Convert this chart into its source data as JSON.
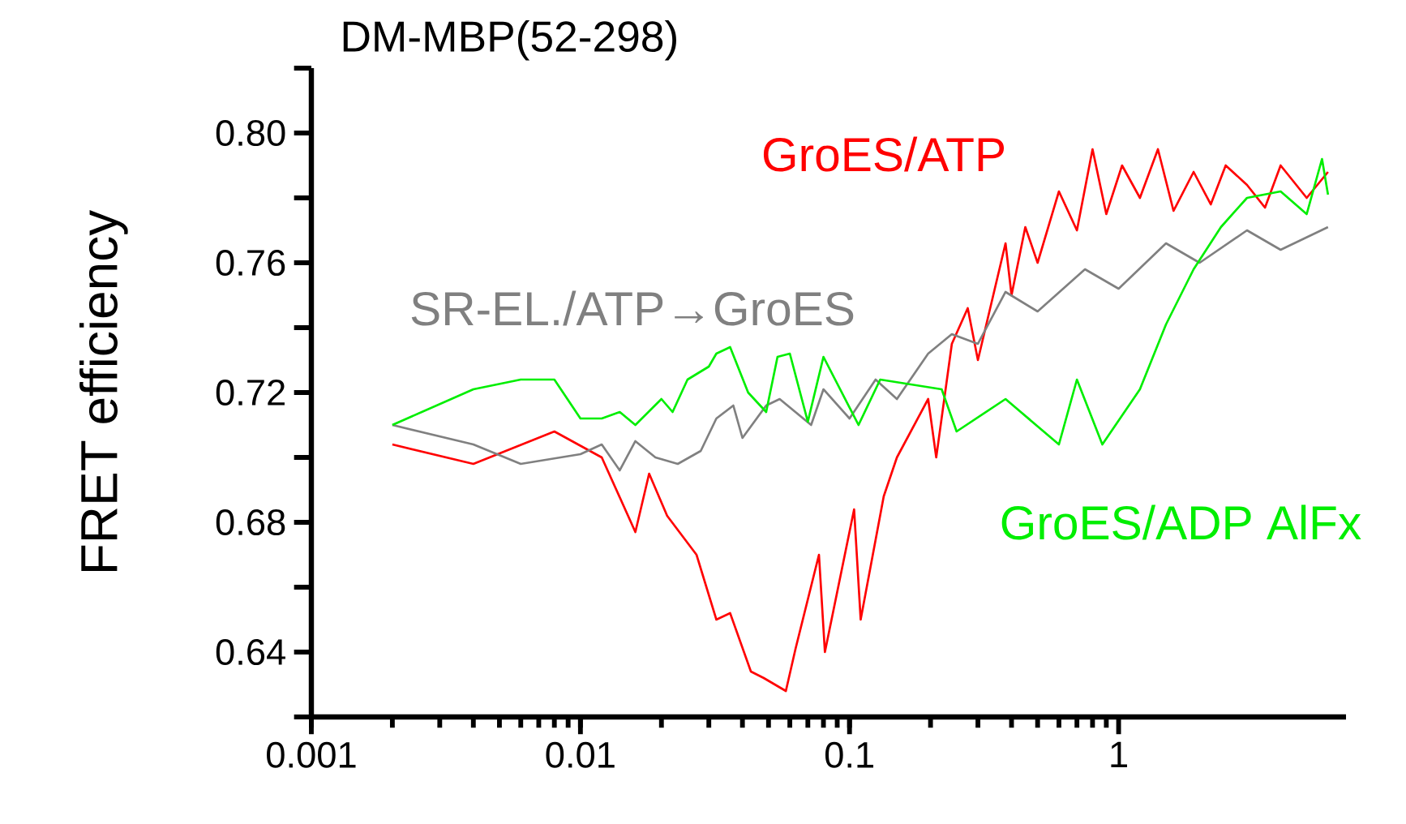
{
  "chart_data": {
    "type": "line",
    "title": "DM-MBP(52-298)",
    "ylabel": "FRET efficiency",
    "log": "x",
    "xlim": [
      0.001,
      7
    ],
    "xticks": [
      0.001,
      0.01,
      0.1,
      1
    ],
    "ylim": [
      0.62,
      0.82
    ],
    "yticks": [
      {
        "value": 0.62,
        "label": null
      },
      0.64,
      {
        "value": 0.66,
        "label": null
      },
      0.68,
      {
        "value": 0.7,
        "label": null
      },
      0.72,
      {
        "value": 0.74,
        "label": null
      },
      0.76,
      {
        "value": 0.78,
        "label": null
      },
      {
        "value": 0.8,
        "label": "0.80"
      },
      {
        "value": 0.82,
        "label": null
      }
    ],
    "series": [
      {
        "name": "GroES/ATP",
        "color": "#ff0000",
        "x": [
          0.002,
          0.004,
          0.008,
          0.012,
          0.016,
          0.018,
          0.021,
          0.027,
          0.032,
          0.036,
          0.043,
          0.048,
          0.058,
          0.063,
          0.077,
          0.081,
          0.104,
          0.11,
          0.134,
          0.15,
          0.196,
          0.21,
          0.24,
          0.275,
          0.3,
          0.38,
          0.4,
          0.45,
          0.5,
          0.6,
          0.7,
          0.8,
          0.9,
          1.03,
          1.2,
          1.4,
          1.6,
          1.9,
          2.2,
          2.5,
          3.0,
          3.5,
          4.0,
          5.0,
          6.0
        ],
        "values": [
          0.704,
          0.698,
          0.708,
          0.7,
          0.677,
          0.695,
          0.682,
          0.67,
          0.65,
          0.652,
          0.634,
          0.632,
          0.628,
          0.641,
          0.67,
          0.64,
          0.684,
          0.65,
          0.688,
          0.7,
          0.718,
          0.7,
          0.735,
          0.746,
          0.73,
          0.766,
          0.75,
          0.771,
          0.76,
          0.782,
          0.77,
          0.795,
          0.775,
          0.79,
          0.78,
          0.795,
          0.776,
          0.788,
          0.778,
          0.79,
          0.784,
          0.777,
          0.79,
          0.78,
          0.788
        ]
      },
      {
        "name": "SR-EL./ATP→GroES",
        "color": "#808080",
        "x": [
          0.002,
          0.004,
          0.006,
          0.01,
          0.012,
          0.014,
          0.016,
          0.019,
          0.023,
          0.028,
          0.032,
          0.037,
          0.04,
          0.049,
          0.055,
          0.072,
          0.08,
          0.1,
          0.125,
          0.15,
          0.196,
          0.24,
          0.3,
          0.38,
          0.5,
          0.75,
          1.0,
          1.5,
          2.0,
          3.0,
          4.0,
          6.0
        ],
        "values": [
          0.71,
          0.704,
          0.698,
          0.701,
          0.704,
          0.696,
          0.705,
          0.7,
          0.698,
          0.702,
          0.712,
          0.716,
          0.706,
          0.716,
          0.718,
          0.71,
          0.721,
          0.712,
          0.724,
          0.718,
          0.732,
          0.738,
          0.735,
          0.751,
          0.745,
          0.758,
          0.752,
          0.766,
          0.76,
          0.77,
          0.764,
          0.771
        ]
      },
      {
        "name": "GroES/ADP AlFx",
        "color": "#00ee00",
        "x": [
          0.002,
          0.004,
          0.006,
          0.008,
          0.01,
          0.012,
          0.014,
          0.016,
          0.02,
          0.022,
          0.025,
          0.03,
          0.032,
          0.036,
          0.042,
          0.049,
          0.054,
          0.06,
          0.07,
          0.08,
          0.108,
          0.13,
          0.22,
          0.25,
          0.38,
          0.6,
          0.7,
          0.87,
          1.2,
          1.5,
          1.9,
          2.4,
          3.0,
          4.0,
          5.0,
          5.7,
          6.0
        ],
        "values": [
          0.71,
          0.721,
          0.724,
          0.724,
          0.712,
          0.712,
          0.714,
          0.71,
          0.718,
          0.714,
          0.724,
          0.728,
          0.732,
          0.734,
          0.72,
          0.714,
          0.731,
          0.732,
          0.711,
          0.731,
          0.71,
          0.724,
          0.721,
          0.708,
          0.718,
          0.704,
          0.724,
          0.704,
          0.721,
          0.741,
          0.758,
          0.771,
          0.78,
          0.782,
          0.775,
          0.792,
          0.781
        ]
      }
    ]
  }
}
